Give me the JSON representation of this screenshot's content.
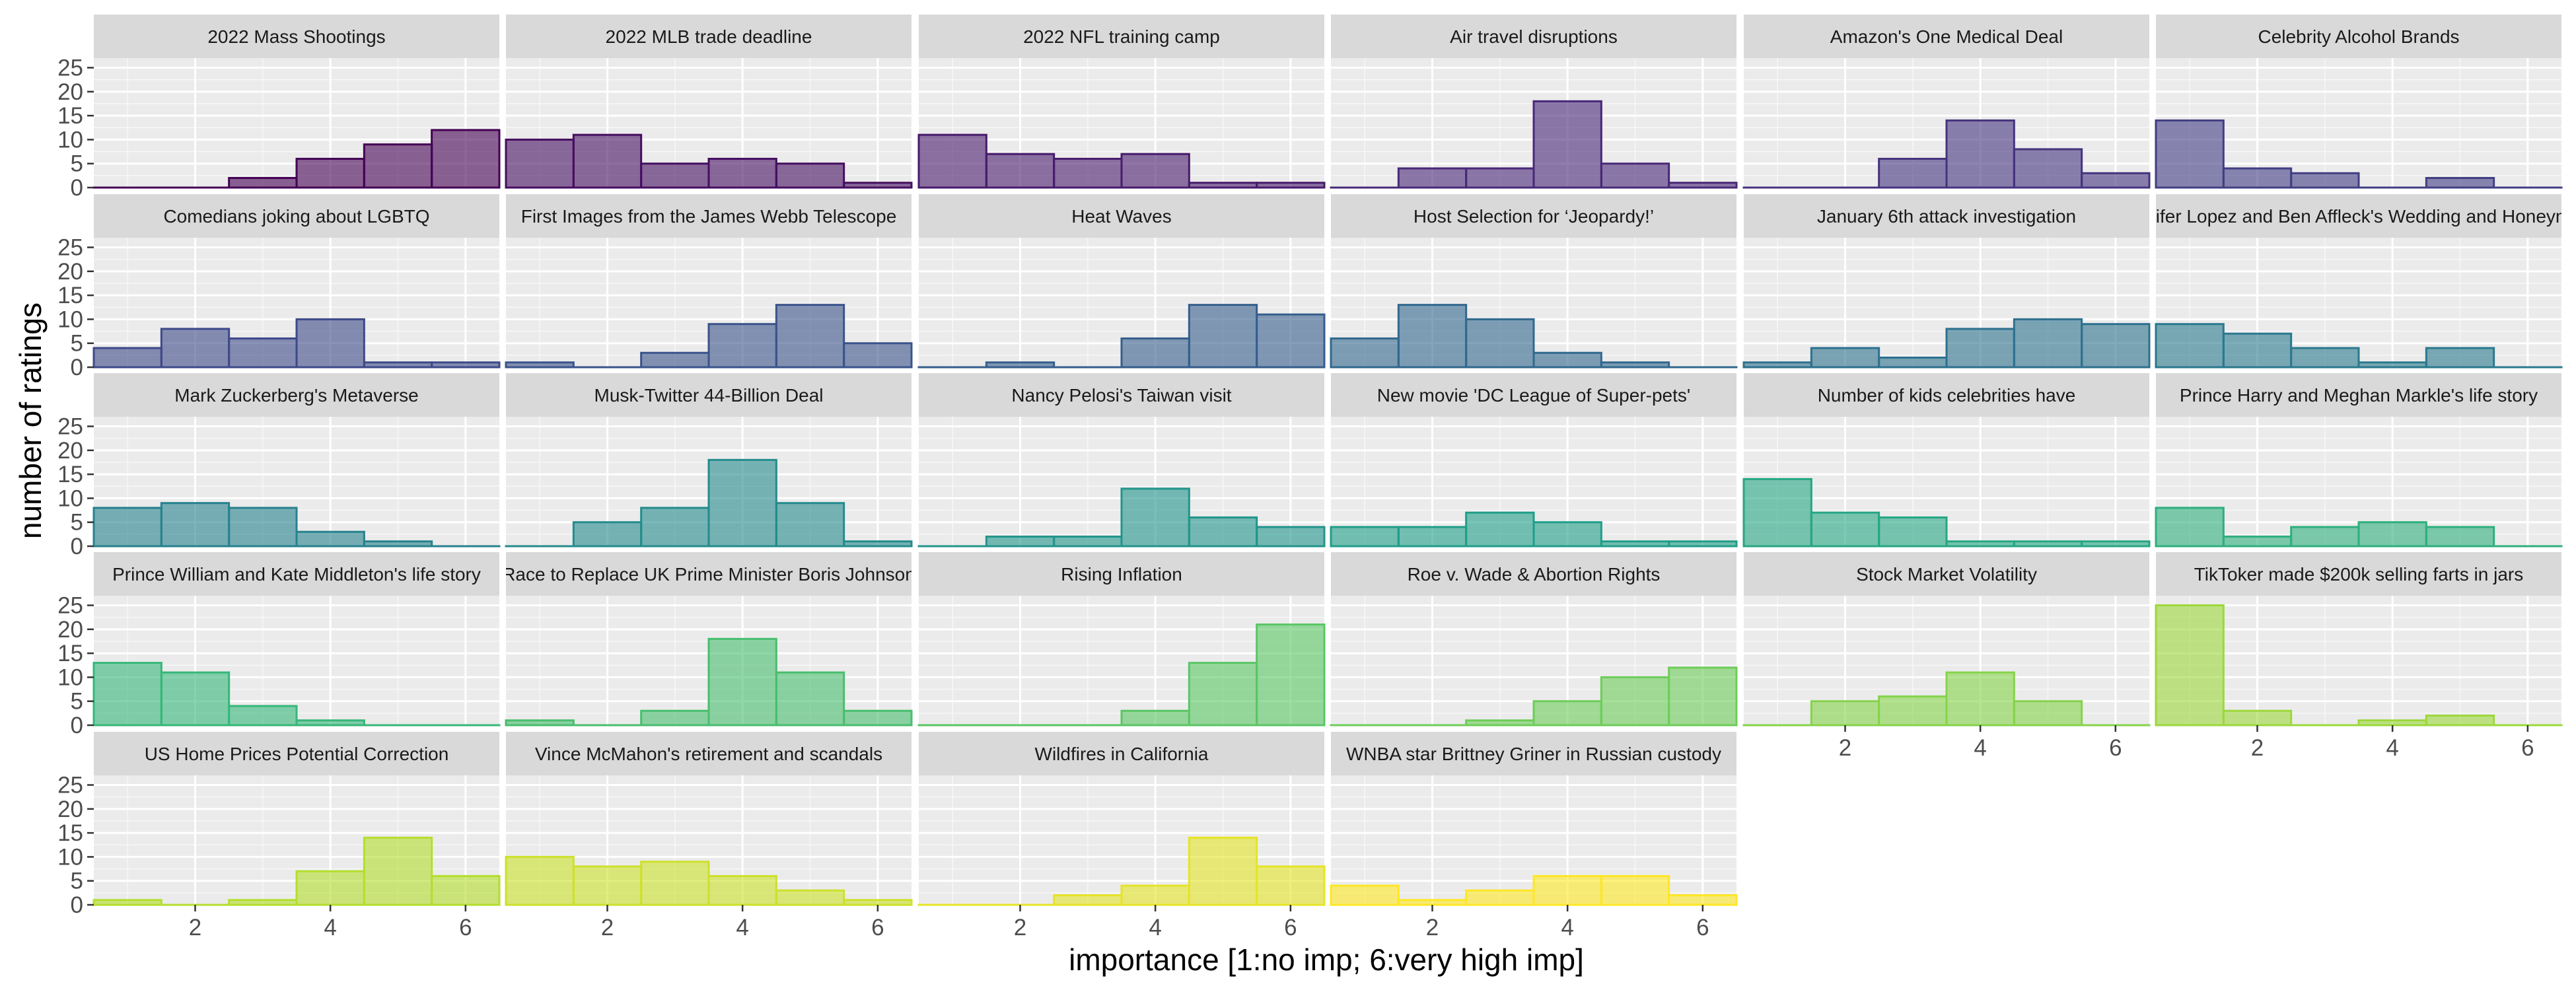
{
  "chart_data": {
    "type": "bar",
    "subtype": "faceted histogram",
    "xlabel": "importance [1:no imp; 6:very high imp]",
    "ylabel": "number of ratings",
    "bins": [
      1,
      2,
      3,
      4,
      5,
      6
    ],
    "xlim": [
      0.5,
      6.5
    ],
    "ylim": [
      0,
      27
    ],
    "x_ticks": [
      2,
      4,
      6
    ],
    "y_ticks": [
      0,
      5,
      10,
      15,
      20,
      25
    ],
    "grid": true,
    "legend": "none",
    "colors": {
      "panel_bg": "#EBEBEB",
      "strip_bg": "#D9D9D9",
      "grid": "#FFFFFF",
      "tick": "#4D4D4D",
      "palette": [
        "#440154",
        "#482878",
        "#3E4989",
        "#31688E",
        "#26828E",
        "#1F9E89",
        "#35B779",
        "#6DCD59",
        "#B4DE2C",
        "#FDE725"
      ]
    },
    "panels": [
      {
        "title": "2022 Mass Shootings",
        "values": [
          0,
          0,
          2,
          6,
          9,
          12
        ]
      },
      {
        "title": "2022 MLB trade deadline",
        "values": [
          10,
          11,
          5,
          6,
          5,
          1
        ]
      },
      {
        "title": "2022 NFL training camp",
        "values": [
          11,
          7,
          6,
          7,
          1,
          1
        ]
      },
      {
        "title": "Air travel disruptions",
        "values": [
          0,
          4,
          4,
          18,
          5,
          1
        ]
      },
      {
        "title": "Amazon's One Medical Deal",
        "values": [
          0,
          0,
          6,
          14,
          8,
          3
        ]
      },
      {
        "title": "Celebrity Alcohol Brands",
        "values": [
          14,
          4,
          3,
          0,
          2,
          0
        ]
      },
      {
        "title": "Comedians joking about LGBTQ",
        "values": [
          4,
          8,
          6,
          10,
          1,
          1
        ]
      },
      {
        "title": "First Images from the James Webb Telescope",
        "values": [
          1,
          0,
          3,
          9,
          13,
          5
        ]
      },
      {
        "title": "Heat Waves",
        "values": [
          0,
          1,
          0,
          6,
          13,
          11
        ]
      },
      {
        "title": "Host Selection for ‘Jeopardy!’",
        "values": [
          6,
          13,
          10,
          3,
          1,
          0
        ]
      },
      {
        "title": "January 6th attack investigation",
        "values": [
          1,
          4,
          2,
          8,
          10,
          9
        ]
      },
      {
        "title": "Jennifer Lopez and Ben Affleck's Wedding and Honeymoon",
        "values": [
          9,
          7,
          4,
          1,
          4,
          0
        ]
      },
      {
        "title": "Mark Zuckerberg's Metaverse",
        "values": [
          8,
          9,
          8,
          3,
          1,
          0
        ]
      },
      {
        "title": "Musk-Twitter 44-Billion Deal",
        "values": [
          0,
          5,
          8,
          18,
          9,
          1
        ]
      },
      {
        "title": "Nancy Pelosi's Taiwan visit",
        "values": [
          0,
          2,
          2,
          12,
          6,
          4
        ]
      },
      {
        "title": "New movie 'DC League of Super-pets'",
        "values": [
          4,
          4,
          7,
          5,
          1,
          1
        ]
      },
      {
        "title": "Number of kids celebrities have",
        "values": [
          14,
          7,
          6,
          1,
          1,
          1
        ]
      },
      {
        "title": "Prince Harry and Meghan Markle's life story",
        "values": [
          8,
          2,
          4,
          5,
          4,
          0
        ]
      },
      {
        "title": "Prince William and Kate Middleton's life story",
        "values": [
          13,
          11,
          4,
          1,
          0,
          0
        ]
      },
      {
        "title": "Race to Replace UK Prime Minister Boris Johnson",
        "values": [
          1,
          0,
          3,
          18,
          11,
          3
        ]
      },
      {
        "title": "Rising Inflation",
        "values": [
          0,
          0,
          0,
          3,
          13,
          21
        ]
      },
      {
        "title": "Roe v. Wade & Abortion Rights",
        "values": [
          0,
          0,
          1,
          5,
          10,
          12
        ]
      },
      {
        "title": "Stock Market Volatility",
        "values": [
          0,
          5,
          6,
          11,
          5,
          0
        ]
      },
      {
        "title": "TikToker made $200k selling farts in jars",
        "values": [
          25,
          3,
          0,
          1,
          2,
          0
        ]
      },
      {
        "title": "US Home Prices Potential Correction",
        "values": [
          1,
          0,
          1,
          7,
          14,
          6
        ]
      },
      {
        "title": "Vince McMahon's retirement and scandals",
        "values": [
          10,
          8,
          9,
          6,
          3,
          1
        ]
      },
      {
        "title": "Wildfires in California",
        "values": [
          0,
          0,
          2,
          4,
          14,
          8
        ]
      },
      {
        "title": "WNBA star Brittney Griner in Russian custody",
        "values": [
          4,
          1,
          3,
          6,
          6,
          2
        ]
      }
    ]
  }
}
